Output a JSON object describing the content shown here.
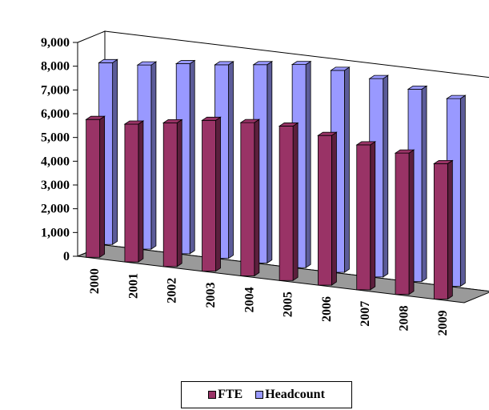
{
  "chart_data": {
    "type": "bar",
    "categories": [
      "2000",
      "2001",
      "2002",
      "2003",
      "2004",
      "2005",
      "2006",
      "2007",
      "2008",
      "2009"
    ],
    "series": [
      {
        "name": "FTE",
        "values": [
          5800,
          5800,
          6050,
          6350,
          6450,
          6500,
          6300,
          6100,
          5950,
          5700
        ],
        "color": "#993366"
      },
      {
        "name": "Headcount",
        "values": [
          7650,
          7750,
          8000,
          8150,
          8350,
          8550,
          8500,
          8350,
          8100,
          7900
        ],
        "color": "#9999ff"
      }
    ],
    "ylim": [
      0,
      9000
    ],
    "y_ticks": [
      "0",
      "1,000",
      "2,000",
      "3,000",
      "4,000",
      "5,000",
      "6,000",
      "7,000",
      "8,000",
      "9,000"
    ],
    "legend_position": "bottom",
    "grid": false,
    "style": "3d-clustered-column"
  },
  "legend": {
    "items": [
      {
        "label": "FTE",
        "color": "#993366"
      },
      {
        "label": "Headcount",
        "color": "#9999ff"
      }
    ]
  }
}
